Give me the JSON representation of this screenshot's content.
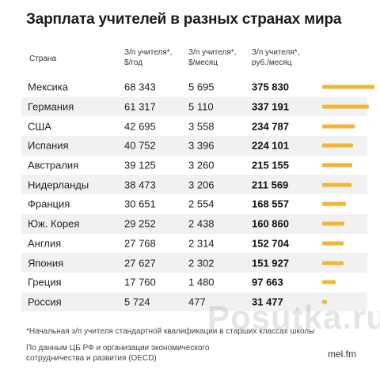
{
  "title": "Зарплата учителей в разных странах мира",
  "headers": {
    "country": "Страна",
    "c1_line1": "З/п учителя*,",
    "c1_line2": "$/год",
    "c2_line1": "З/п учителя*,",
    "c2_line2": "$/месяц",
    "c3_line1": "З/п учителя*,",
    "c3_line2": "руб./месяц"
  },
  "footnote": "*Начальная з/п учителя стандартной квалификации в старших классах школы",
  "source_line1": "По данным ЦБ РФ и организации экономического",
  "source_line2": "сотрудничества и развития (OECD)",
  "brand": "mel.fm",
  "watermark": "Posutka.ru",
  "colors": {
    "bar": "#f2b632",
    "shade": "#f1f1f1"
  },
  "chart_data": {
    "type": "table",
    "title": "Зарплата учителей в разных странах мира",
    "columns": [
      "Страна",
      "З/п учителя*, $/год",
      "З/п учителя*, $/месяц",
      "З/п учителя*, руб./месяц"
    ],
    "rows": [
      {
        "country": "Мексика",
        "usd_year": "68 343",
        "usd_month": "5 695",
        "rub_month": "375 830",
        "rub_value": 375830
      },
      {
        "country": "Германия",
        "usd_year": "61 317",
        "usd_month": "5 110",
        "rub_month": "337 191",
        "rub_value": 337191
      },
      {
        "country": "США",
        "usd_year": "42 695",
        "usd_month": "3 558",
        "rub_month": "234 787",
        "rub_value": 234787
      },
      {
        "country": "Испания",
        "usd_year": "40 752",
        "usd_month": "3 396",
        "rub_month": "224 101",
        "rub_value": 224101
      },
      {
        "country": "Австралия",
        "usd_year": "39 125",
        "usd_month": "3 260",
        "rub_month": "215 155",
        "rub_value": 215155
      },
      {
        "country": "Нидерланды",
        "usd_year": "38 473",
        "usd_month": "3 206",
        "rub_month": "211 569",
        "rub_value": 211569
      },
      {
        "country": "Франция",
        "usd_year": "30 651",
        "usd_month": "2 554",
        "rub_month": "168 557",
        "rub_value": 168557
      },
      {
        "country": "Юж. Корея",
        "usd_year": "29 252",
        "usd_month": "2 438",
        "rub_month": "160 860",
        "rub_value": 160860
      },
      {
        "country": "Англия",
        "usd_year": "27 768",
        "usd_month": "2 314",
        "rub_month": "152 704",
        "rub_value": 152704
      },
      {
        "country": "Япония",
        "usd_year": "27 627",
        "usd_month": "2 302",
        "rub_month": "151 927",
        "rub_value": 151927
      },
      {
        "country": "Греция",
        "usd_year": "17 760",
        "usd_month": "1 480",
        "rub_month": "97 663",
        "rub_value": 97663
      },
      {
        "country": "Россия",
        "usd_year": "5 724",
        "usd_month": "477",
        "rub_month": "31 477",
        "rub_value": 31477
      }
    ]
  }
}
